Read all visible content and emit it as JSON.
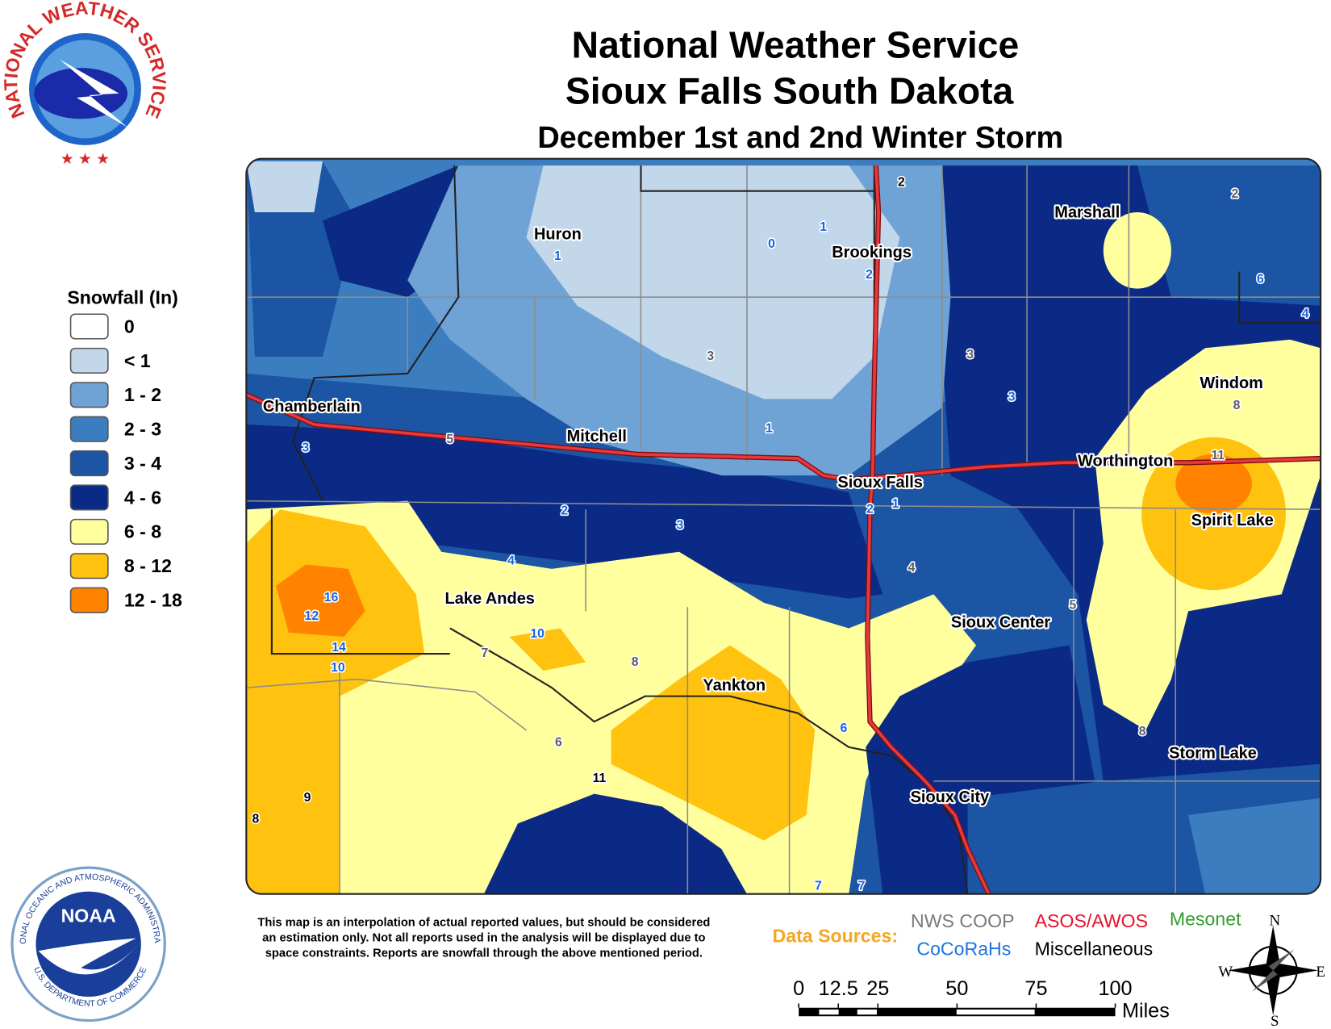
{
  "header": {
    "titles": [
      "National Weather Service",
      "Sioux Falls South Dakota",
      "December 1st and 2nd Winter Storm"
    ]
  },
  "legend": {
    "title": "Snowfall (In)",
    "items": [
      "0",
      "< 1",
      "1 - 2",
      "2 - 3",
      "3 - 4",
      "4 - 6",
      "6 - 8",
      "8 - 12",
      "12 - 18"
    ]
  },
  "cities": [
    "Huron",
    "Brookings",
    "Marshall",
    "Windom",
    "Chamberlain",
    "Mitchell",
    "Worthington",
    "Sioux Falls",
    "Spirit Lake",
    "Lake Andes",
    "Sioux Center",
    "Yankton",
    "Storm Lake",
    "Sioux City"
  ],
  "reports": [
    2,
    2,
    1,
    0,
    1,
    2,
    6,
    4,
    3,
    3,
    3,
    8,
    1,
    5,
    3,
    11,
    2,
    1,
    2,
    3,
    4,
    4,
    16,
    12,
    5,
    10,
    14,
    7,
    8,
    10,
    6,
    8,
    6,
    11,
    9,
    8,
    7,
    7
  ],
  "note": [
    "This map is an interpolation of actual reported values, but should be considered",
    "an estimation only. Not all reports used in the analysis will be displayed due to",
    "space constraints. Reports are snowfall through the above mentioned period."
  ],
  "sources": {
    "label": "Data Sources:",
    "items": [
      "NWS COOP",
      "ASOS/AWOS",
      "Mesonet",
      "CoCoRaHs",
      "Miscellaneous"
    ]
  },
  "scale": {
    "ticks": [
      0,
      12.5,
      25,
      50,
      75,
      100
    ],
    "unit": "Miles"
  },
  "compass": [
    "N",
    "E",
    "S",
    "W"
  ],
  "logos": {
    "nws": "NATIONAL WEATHER SERVICE",
    "noaa": "NOAA",
    "noaa_ring_top": "NATIONAL OCEANIC AND ATMOSPHERIC ADMINISTRATION",
    "noaa_ring_bottom": "U.S. DEPARTMENT OF COMMERCE"
  }
}
